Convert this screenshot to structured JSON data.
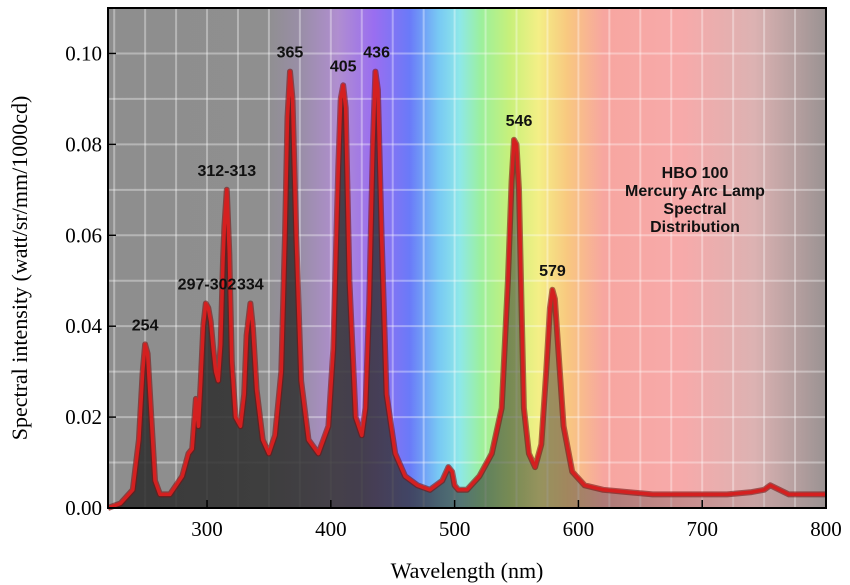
{
  "chart_data": {
    "type": "line",
    "annotation_lines": [
      "HBO 100",
      "Mercury Arc Lamp",
      "Spectral",
      "Distribution"
    ],
    "xlabel": "Wavelength (nm)",
    "ylabel": "Spectral intensity (watt/sr/mm/1000cd)",
    "xlim": [
      220,
      800
    ],
    "ylim": [
      0,
      0.11
    ],
    "x_ticks": [
      300,
      400,
      500,
      600,
      700,
      800
    ],
    "y_ticks": [
      0.0,
      0.02,
      0.04,
      0.06,
      0.08,
      0.1
    ],
    "x_tick_labels": [
      "300",
      "400",
      "500",
      "600",
      "700",
      "800"
    ],
    "y_tick_labels": [
      "0.00",
      "0.02",
      "0.04",
      "0.06",
      "0.08",
      "0.10"
    ],
    "grid": true,
    "background": "visible spectrum gradient over grey",
    "line_color": "#d42020",
    "peak_labels": [
      {
        "text": "254",
        "x": 250,
        "y": 0.036
      },
      {
        "text": "297-302",
        "x": 300,
        "y": 0.045
      },
      {
        "text": "312-313",
        "x": 316,
        "y": 0.07
      },
      {
        "text": "334",
        "x": 335,
        "y": 0.045
      },
      {
        "text": "365",
        "x": 367,
        "y": 0.096
      },
      {
        "text": "405",
        "x": 410,
        "y": 0.093
      },
      {
        "text": "436",
        "x": 437,
        "y": 0.096
      },
      {
        "text": "546",
        "x": 552,
        "y": 0.081
      },
      {
        "text": "579",
        "x": 579,
        "y": 0.048
      }
    ],
    "series": [
      {
        "x": [
          220,
          230,
          240,
          245,
          248,
          250,
          252,
          255,
          258,
          262,
          270,
          280,
          285,
          288,
          291,
          293,
          295,
          297,
          299,
          301,
          303,
          305,
          307,
          309,
          311,
          313,
          314,
          316,
          318,
          320,
          323,
          327,
          330,
          332,
          335,
          337,
          340,
          345,
          350,
          355,
          360,
          363,
          365,
          367,
          369,
          372,
          376,
          382,
          390,
          398,
          402,
          406,
          408,
          410,
          412,
          415,
          420,
          425,
          428,
          431,
          434,
          436,
          438,
          441,
          445,
          452,
          460,
          470,
          480,
          490,
          495,
          498,
          500,
          503,
          510,
          520,
          530,
          538,
          543,
          546,
          548,
          550,
          552,
          554,
          556,
          560,
          565,
          570,
          574,
          577,
          579,
          581,
          584,
          588,
          595,
          605,
          620,
          640,
          660,
          680,
          700,
          720,
          740,
          750,
          755,
          770,
          800
        ],
        "y": [
          0.0,
          0.001,
          0.004,
          0.015,
          0.03,
          0.036,
          0.034,
          0.02,
          0.006,
          0.003,
          0.003,
          0.007,
          0.012,
          0.013,
          0.024,
          0.018,
          0.028,
          0.04,
          0.045,
          0.044,
          0.041,
          0.035,
          0.03,
          0.028,
          0.036,
          0.055,
          0.062,
          0.07,
          0.056,
          0.032,
          0.02,
          0.018,
          0.025,
          0.038,
          0.045,
          0.04,
          0.026,
          0.015,
          0.012,
          0.016,
          0.03,
          0.06,
          0.086,
          0.096,
          0.09,
          0.06,
          0.028,
          0.015,
          0.012,
          0.018,
          0.035,
          0.075,
          0.09,
          0.093,
          0.088,
          0.05,
          0.02,
          0.016,
          0.022,
          0.045,
          0.08,
          0.096,
          0.092,
          0.06,
          0.025,
          0.012,
          0.007,
          0.005,
          0.004,
          0.006,
          0.009,
          0.008,
          0.005,
          0.004,
          0.004,
          0.007,
          0.012,
          0.022,
          0.05,
          0.072,
          0.081,
          0.08,
          0.07,
          0.045,
          0.022,
          0.012,
          0.009,
          0.014,
          0.03,
          0.044,
          0.048,
          0.046,
          0.034,
          0.018,
          0.008,
          0.005,
          0.004,
          0.0035,
          0.003,
          0.003,
          0.003,
          0.003,
          0.0035,
          0.004,
          0.005,
          0.003,
          0.003
        ]
      }
    ]
  }
}
